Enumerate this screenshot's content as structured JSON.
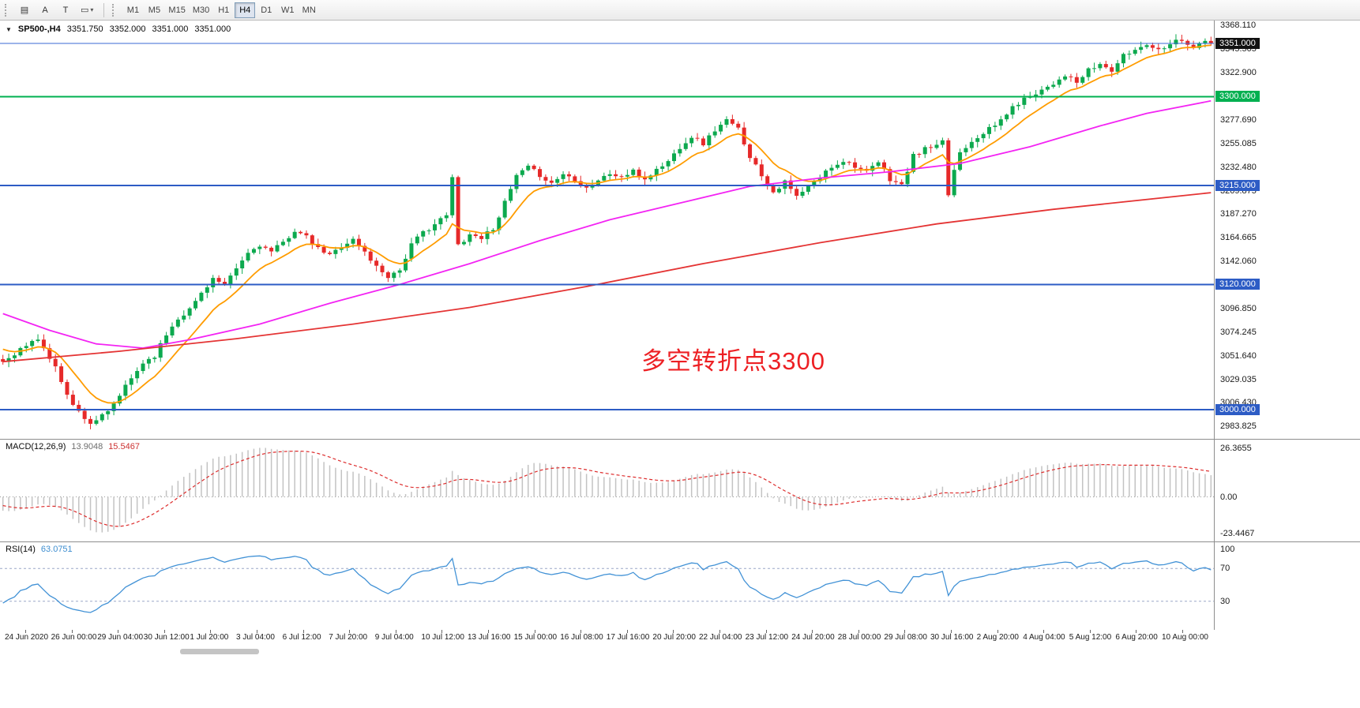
{
  "toolbar": {
    "tools": [
      {
        "name": "charts-grid-icon",
        "glyph": "▤"
      },
      {
        "name": "cursor-tool",
        "glyph": "A"
      },
      {
        "name": "text-tool",
        "glyph": "T"
      },
      {
        "name": "shapes-tool",
        "glyph": "▭",
        "caret": "▾"
      }
    ],
    "timeframes": [
      "M1",
      "M5",
      "M15",
      "M30",
      "H1",
      "H4",
      "D1",
      "W1",
      "MN"
    ],
    "active_timeframe": "H4"
  },
  "chart_header": {
    "marker": "▼",
    "symbol": "SP500-,H4",
    "open": "3351.750",
    "high": "3352.000",
    "low": "3351.000",
    "close": "3351.000"
  },
  "annotation": {
    "text": "多空转折点3300",
    "color": "#ed2024"
  },
  "price_scale": {
    "labels": [
      "3368.110",
      "3345.505",
      "3322.900",
      "3300.295",
      "3277.690",
      "3255.085",
      "3232.480",
      "3209.875",
      "3187.270",
      "3164.665",
      "3142.060",
      "3119.455",
      "3096.850",
      "3074.245",
      "3051.640",
      "3029.035",
      "3006.430",
      "2983.825"
    ],
    "badges": [
      {
        "text": "3351.000",
        "price": 3351.0,
        "bg": "#111111",
        "name": "current-price-badge"
      },
      {
        "text": "3300.000",
        "price": 3300.0,
        "bg": "#00b050",
        "name": "level-3300-badge"
      },
      {
        "text": "3215.000",
        "price": 3215.0,
        "bg": "#2d5cc5",
        "name": "level-3215-badge"
      },
      {
        "text": "3120.000",
        "price": 3120.0,
        "bg": "#2d5cc5",
        "name": "level-3120-badge"
      },
      {
        "text": "3000.000",
        "price": 3000.0,
        "bg": "#2d5cc5",
        "name": "level-3000-badge"
      }
    ]
  },
  "hlines": [
    {
      "name": "current-price-line",
      "price": 3351.0,
      "color": "#3a6ad4",
      "width": 1
    },
    {
      "name": "level-line-3300",
      "price": 3300.0,
      "color": "#00b050",
      "width": 2
    },
    {
      "name": "level-line-3215",
      "price": 3215.0,
      "color": "#2d5cc5",
      "width": 2
    },
    {
      "name": "level-line-3120",
      "price": 3120.0,
      "color": "#2d5cc5",
      "width": 2
    },
    {
      "name": "level-line-3000",
      "price": 3000.0,
      "color": "#2d5cc5",
      "width": 2
    }
  ],
  "macd": {
    "label": "MACD(12,26,9)",
    "value_main": "13.9048",
    "value_signal": "15.5467",
    "scale_top": "26.3655",
    "scale_zero": "0.00",
    "scale_bottom": "-23.4467"
  },
  "rsi": {
    "label": "RSI(14)",
    "value": "63.0751",
    "scale": [
      "100",
      "70",
      "30"
    ],
    "levels": [
      70,
      30
    ]
  },
  "time_axis": [
    "24 Jun 2020",
    "26 Jun 00:00",
    "29 Jun 04:00",
    "30 Jun 12:00",
    "1 Jul 20:00",
    "3 Jul 04:00",
    "6 Jul 12:00",
    "7 Jul 20:00",
    "9 Jul 04:00",
    "10 Jul 12:00",
    "13 Jul 16:00",
    "15 Jul 00:00",
    "16 Jul 08:00",
    "17 Jul 16:00",
    "20 Jul 20:00",
    "22 Jul 04:00",
    "23 Jul 12:00",
    "24 Jul 20:00",
    "28 Jul 00:00",
    "29 Jul 08:00",
    "30 Jul 16:00",
    "2 Aug 20:00",
    "4 Aug 04:00",
    "5 Aug 12:00",
    "6 Aug 20:00",
    "10 Aug 00:00"
  ],
  "chart_data": {
    "type": "candlestick",
    "symbol": "SP500-",
    "period": "H4",
    "bars": 208,
    "warmup_bars": 60,
    "seed": 11,
    "jitter": 2.2,
    "price_min": 2972,
    "price_max": 3373,
    "last_close": 3351.0,
    "keyframes": [
      [
        -60,
        3120
      ],
      [
        -55,
        3030
      ],
      [
        -50,
        2985
      ],
      [
        -45,
        3090
      ],
      [
        -40,
        3115
      ],
      [
        -35,
        3065
      ],
      [
        -30,
        3098
      ],
      [
        -25,
        3055
      ],
      [
        -20,
        3090
      ],
      [
        -15,
        3085
      ],
      [
        -10,
        3075
      ],
      [
        -5,
        3060
      ],
      [
        0,
        3046
      ],
      [
        3,
        3058
      ],
      [
        6,
        3068
      ],
      [
        9,
        3040
      ],
      [
        12,
        3004
      ],
      [
        15,
        2987
      ],
      [
        18,
        2997
      ],
      [
        21,
        3022
      ],
      [
        24,
        3045
      ],
      [
        26,
        3052
      ],
      [
        28,
        3072
      ],
      [
        30,
        3088
      ],
      [
        32,
        3096
      ],
      [
        34,
        3112
      ],
      [
        36,
        3126
      ],
      [
        38,
        3118
      ],
      [
        40,
        3135
      ],
      [
        42,
        3150
      ],
      [
        44,
        3158
      ],
      [
        46,
        3151
      ],
      [
        48,
        3160
      ],
      [
        50,
        3172
      ],
      [
        52,
        3165
      ],
      [
        54,
        3154
      ],
      [
        56,
        3148
      ],
      [
        58,
        3157
      ],
      [
        60,
        3163
      ],
      [
        62,
        3151
      ],
      [
        64,
        3137
      ],
      [
        66,
        3128
      ],
      [
        68,
        3134
      ],
      [
        70,
        3158
      ],
      [
        72,
        3170
      ],
      [
        74,
        3178
      ],
      [
        76,
        3186
      ],
      [
        77,
        3222
      ],
      [
        78,
        3158
      ],
      [
        80,
        3168
      ],
      [
        82,
        3165
      ],
      [
        84,
        3174
      ],
      [
        86,
        3198
      ],
      [
        88,
        3224
      ],
      [
        90,
        3232
      ],
      [
        92,
        3225
      ],
      [
        94,
        3217
      ],
      [
        96,
        3226
      ],
      [
        98,
        3221
      ],
      [
        100,
        3213
      ],
      [
        102,
        3220
      ],
      [
        104,
        3226
      ],
      [
        106,
        3223
      ],
      [
        108,
        3228
      ],
      [
        110,
        3221
      ],
      [
        112,
        3230
      ],
      [
        114,
        3238
      ],
      [
        116,
        3252
      ],
      [
        118,
        3262
      ],
      [
        120,
        3255
      ],
      [
        122,
        3268
      ],
      [
        124,
        3277
      ],
      [
        126,
        3269
      ],
      [
        128,
        3243
      ],
      [
        130,
        3225
      ],
      [
        132,
        3209
      ],
      [
        134,
        3218
      ],
      [
        136,
        3204
      ],
      [
        138,
        3213
      ],
      [
        140,
        3223
      ],
      [
        142,
        3233
      ],
      [
        144,
        3239
      ],
      [
        146,
        3234
      ],
      [
        148,
        3227
      ],
      [
        150,
        3237
      ],
      [
        152,
        3221
      ],
      [
        154,
        3215
      ],
      [
        156,
        3243
      ],
      [
        158,
        3250
      ],
      [
        160,
        3252
      ],
      [
        161,
        3256
      ],
      [
        162,
        3206
      ],
      [
        163,
        3230
      ],
      [
        164,
        3247
      ],
      [
        166,
        3258
      ],
      [
        168,
        3266
      ],
      [
        170,
        3272
      ],
      [
        172,
        3284
      ],
      [
        174,
        3294
      ],
      [
        176,
        3301
      ],
      [
        178,
        3307
      ],
      [
        180,
        3313
      ],
      [
        182,
        3321
      ],
      [
        184,
        3313
      ],
      [
        186,
        3325
      ],
      [
        188,
        3331
      ],
      [
        190,
        3325
      ],
      [
        192,
        3339
      ],
      [
        194,
        3345
      ],
      [
        196,
        3351
      ],
      [
        198,
        3345
      ],
      [
        200,
        3352
      ],
      [
        202,
        3355
      ],
      [
        204,
        3347
      ],
      [
        206,
        3353
      ],
      [
        207,
        3351
      ]
    ],
    "moving_averages": {
      "fast": {
        "name": "ma-fast",
        "type": "ema",
        "period": 10,
        "color": "#ff9c00"
      },
      "medium": {
        "name": "ma-medium",
        "type": "points",
        "color": "#f324f3",
        "points": [
          [
            0,
            3092
          ],
          [
            8,
            3076
          ],
          [
            16,
            3063
          ],
          [
            24,
            3059
          ],
          [
            32,
            3067
          ],
          [
            44,
            3082
          ],
          [
            56,
            3102
          ],
          [
            68,
            3120
          ],
          [
            80,
            3140
          ],
          [
            92,
            3162
          ],
          [
            104,
            3182
          ],
          [
            116,
            3198
          ],
          [
            128,
            3214
          ],
          [
            140,
            3222
          ],
          [
            152,
            3228
          ],
          [
            164,
            3236
          ],
          [
            176,
            3252
          ],
          [
            188,
            3272
          ],
          [
            196,
            3284
          ],
          [
            207,
            3296
          ]
        ]
      },
      "slow": {
        "name": "ma-slow",
        "type": "points",
        "color": "#e43434",
        "points": [
          [
            0,
            3046
          ],
          [
            20,
            3056
          ],
          [
            40,
            3068
          ],
          [
            60,
            3082
          ],
          [
            80,
            3098
          ],
          [
            100,
            3118
          ],
          [
            120,
            3140
          ],
          [
            140,
            3160
          ],
          [
            160,
            3178
          ],
          [
            180,
            3192
          ],
          [
            207,
            3208
          ]
        ]
      }
    },
    "indicators": {
      "macd": {
        "fast": 12,
        "slow": 26,
        "signal": 9
      },
      "rsi": {
        "period": 14
      }
    },
    "colors": {
      "up": "#0ca94e",
      "down": "#e62929",
      "macd_hist": "#c3c3c3",
      "macd_signal": "#dd2c2c",
      "macd_zero": "#9a9a9a",
      "rsi_line": "#4292d6",
      "rsi_level": "#9aa7c7"
    }
  }
}
